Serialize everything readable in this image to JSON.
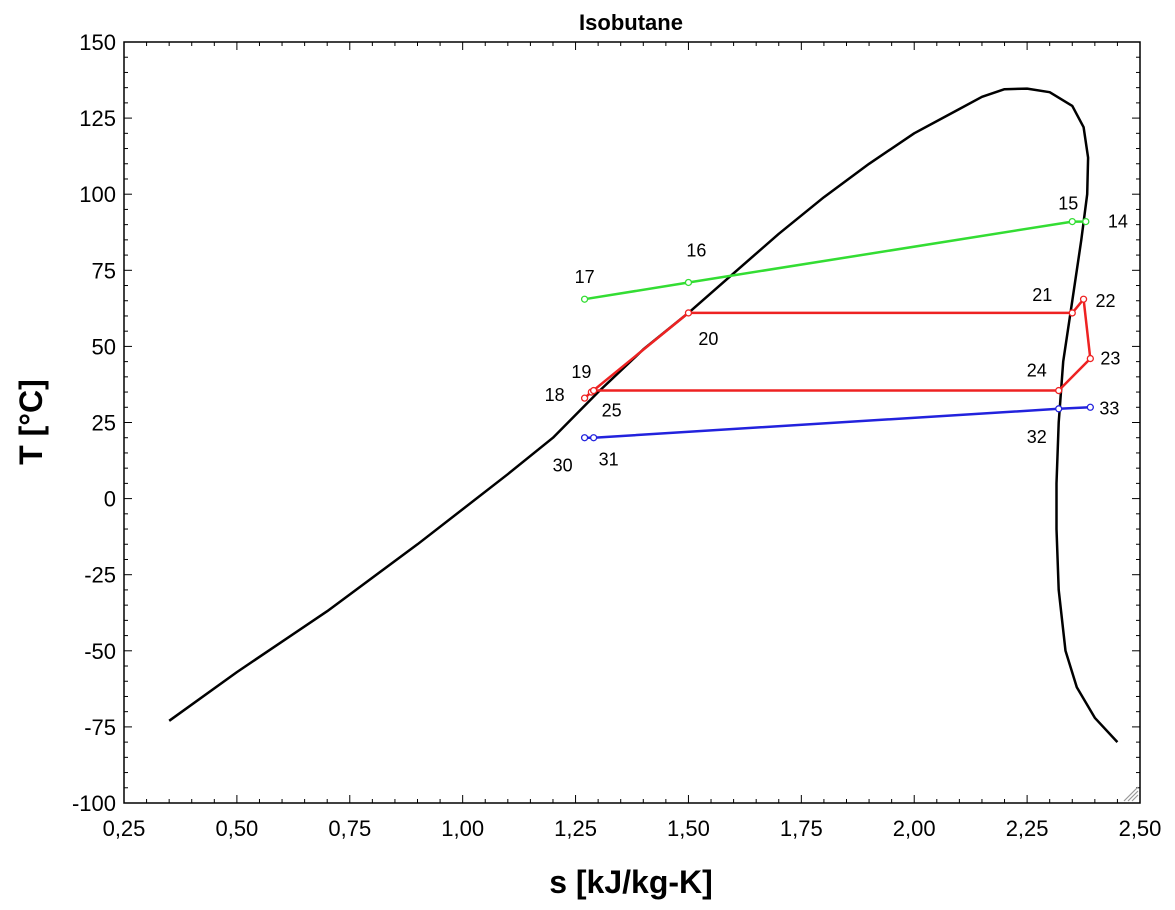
{
  "chart_data": {
    "type": "line",
    "title": "Isobutane",
    "xlabel": "s [kJ/kg-K]",
    "ylabel": "T [°C]",
    "xlim": [
      0.25,
      2.5
    ],
    "ylim": [
      -100,
      150
    ],
    "xticks": [
      {
        "value": 0.25,
        "label": "0,25"
      },
      {
        "value": 0.5,
        "label": "0,50"
      },
      {
        "value": 0.75,
        "label": "0,75"
      },
      {
        "value": 1.0,
        "label": "1,00"
      },
      {
        "value": 1.25,
        "label": "1,25"
      },
      {
        "value": 1.5,
        "label": "1,50"
      },
      {
        "value": 1.75,
        "label": "1,75"
      },
      {
        "value": 2.0,
        "label": "2,00"
      },
      {
        "value": 2.25,
        "label": "2,25"
      },
      {
        "value": 2.5,
        "label": "2,50"
      }
    ],
    "yticks": [
      {
        "value": -100,
        "label": "-100"
      },
      {
        "value": -75,
        "label": "-75"
      },
      {
        "value": -50,
        "label": "-50"
      },
      {
        "value": -25,
        "label": "-25"
      },
      {
        "value": 0,
        "label": "0"
      },
      {
        "value": 25,
        "label": "25"
      },
      {
        "value": 50,
        "label": "50"
      },
      {
        "value": 75,
        "label": "75"
      },
      {
        "value": 100,
        "label": "100"
      },
      {
        "value": 125,
        "label": "125"
      },
      {
        "value": 150,
        "label": "150"
      }
    ],
    "grid": false,
    "dome": {
      "color": "#000000",
      "points": [
        [
          0.35,
          -73
        ],
        [
          0.5,
          -57
        ],
        [
          0.7,
          -37
        ],
        [
          0.9,
          -15
        ],
        [
          1.1,
          8
        ],
        [
          1.2,
          20
        ],
        [
          1.3,
          35
        ],
        [
          1.4,
          49
        ],
        [
          1.5,
          61
        ],
        [
          1.6,
          74
        ],
        [
          1.7,
          87
        ],
        [
          1.8,
          99
        ],
        [
          1.9,
          110
        ],
        [
          2.0,
          120
        ],
        [
          2.1,
          128
        ],
        [
          2.15,
          132
        ],
        [
          2.2,
          134.5
        ],
        [
          2.25,
          134.7
        ],
        [
          2.3,
          133.5
        ],
        [
          2.35,
          129
        ],
        [
          2.375,
          122
        ],
        [
          2.385,
          112
        ],
        [
          2.383,
          100
        ],
        [
          2.37,
          85
        ],
        [
          2.35,
          65
        ],
        [
          2.33,
          45
        ],
        [
          2.32,
          25
        ],
        [
          2.315,
          5
        ],
        [
          2.315,
          -10
        ],
        [
          2.32,
          -30
        ],
        [
          2.335,
          -50
        ],
        [
          2.36,
          -62
        ],
        [
          2.4,
          -72
        ],
        [
          2.45,
          -80
        ]
      ]
    },
    "series": [
      {
        "color": "#33dd33",
        "points": [
          {
            "x": 2.38,
            "y": 91,
            "label": "14"
          },
          {
            "x": 2.35,
            "y": 91,
            "label": "15"
          },
          {
            "x": 1.5,
            "y": 71,
            "label": "16"
          },
          {
            "x": 1.27,
            "y": 65.5,
            "label": "17"
          }
        ]
      },
      {
        "color": "#ee2222",
        "points": [
          {
            "x": 1.27,
            "y": 33,
            "label": "18"
          },
          {
            "x": 1.285,
            "y": 35,
            "label": "19"
          },
          {
            "x": 1.5,
            "y": 61,
            "label": "20"
          },
          {
            "x": 2.35,
            "y": 61,
            "label": "21"
          },
          {
            "x": 2.375,
            "y": 65.5,
            "label": "22"
          },
          {
            "x": 2.39,
            "y": 46,
            "label": "23"
          },
          {
            "x": 2.32,
            "y": 35.5,
            "label": "24"
          },
          {
            "x": 1.29,
            "y": 35.5,
            "label": "25"
          }
        ]
      },
      {
        "color": "#2222dd",
        "points": [
          {
            "x": 1.27,
            "y": 20,
            "label": "30"
          },
          {
            "x": 1.29,
            "y": 20,
            "label": "31"
          },
          {
            "x": 2.32,
            "y": 29.5,
            "label": "32"
          },
          {
            "x": 2.39,
            "y": 30,
            "label": "33"
          }
        ]
      }
    ]
  }
}
